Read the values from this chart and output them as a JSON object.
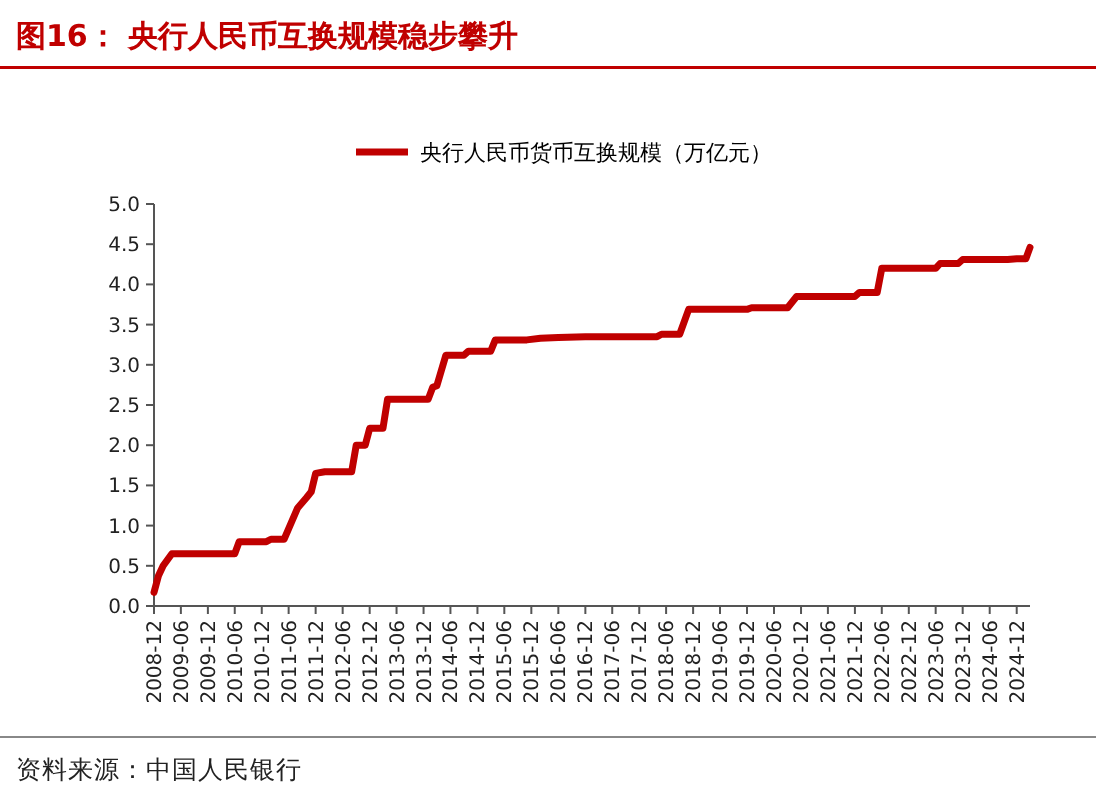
{
  "chart_data": {
    "type": "line",
    "title": "图16：  央行人民币互换规模稳步攀升",
    "annotations": [
      "资料来源：中国人民银行"
    ],
    "x": [
      "2008-12",
      "2009-01",
      "2009-02",
      "2009-04",
      "2010-06",
      "2010-07",
      "2011-01",
      "2011-02",
      "2011-05",
      "2011-08",
      "2011-10",
      "2011-11",
      "2011-12",
      "2012-02",
      "2012-08",
      "2012-09",
      "2012-11",
      "2012-12",
      "2013-03",
      "2013-04",
      "2014-01",
      "2014-02",
      "2014-03",
      "2014-05",
      "2014-09",
      "2014-10",
      "2015-03",
      "2015-04",
      "2015-11",
      "2016-02",
      "2016-06",
      "2016-12",
      "2018-04",
      "2018-05",
      "2018-09",
      "2018-11",
      "2019-12",
      "2020-01",
      "2020-09",
      "2020-11",
      "2021-12",
      "2022-01",
      "2022-05",
      "2022-06",
      "2023-06",
      "2023-07",
      "2023-11",
      "2023-12",
      "2024-10",
      "2024-12",
      "2025-02",
      "2025-03"
    ],
    "series": [
      {
        "name": "央行人民币货币互换规模（万亿元）",
        "color": "#c00000",
        "values": [
          0.17,
          0.38,
          0.5,
          0.65,
          0.65,
          0.8,
          0.8,
          0.83,
          0.83,
          1.22,
          1.35,
          1.42,
          1.65,
          1.67,
          1.67,
          2.0,
          2.0,
          2.21,
          2.21,
          2.57,
          2.57,
          2.72,
          2.74,
          3.12,
          3.12,
          3.17,
          3.17,
          3.31,
          3.31,
          3.33,
          3.34,
          3.35,
          3.35,
          3.38,
          3.38,
          3.69,
          3.69,
          3.71,
          3.71,
          3.85,
          3.85,
          3.9,
          3.9,
          4.2,
          4.2,
          4.26,
          4.26,
          4.31,
          4.31,
          4.32,
          4.32,
          4.46
        ]
      }
    ],
    "xlim": [
      "2008-12",
      "2025-03"
    ],
    "xticks": [
      "2008-12",
      "2009-06",
      "2009-12",
      "2010-06",
      "2010-12",
      "2011-06",
      "2011-12",
      "2012-06",
      "2012-12",
      "2013-06",
      "2013-12",
      "2014-06",
      "2014-12",
      "2015-06",
      "2015-12",
      "2016-06",
      "2016-12",
      "2017-06",
      "2017-12",
      "2018-06",
      "2018-12",
      "2019-06",
      "2019-12",
      "2020-06",
      "2020-12",
      "2021-06",
      "2021-12",
      "2022-06",
      "2022-12",
      "2023-06",
      "2023-12",
      "2024-06",
      "2024-12"
    ],
    "ylim": [
      0,
      5
    ],
    "yticks": [
      {
        "value": 0,
        "label": "0.0"
      },
      {
        "value": 0.5,
        "label": "0.5"
      },
      {
        "value": 1,
        "label": "1.0"
      },
      {
        "value": 1.5,
        "label": "1.5"
      },
      {
        "value": 2,
        "label": "2.0"
      },
      {
        "value": 2.5,
        "label": "2.5"
      },
      {
        "value": 3,
        "label": "3.0"
      },
      {
        "value": 3.5,
        "label": "3.5"
      },
      {
        "value": 4,
        "label": "4.0"
      },
      {
        "value": 4.5,
        "label": "4.5"
      },
      {
        "value": 5,
        "label": "5.0"
      }
    ],
    "grid": false,
    "legend": "top",
    "marker": "none",
    "line_style": "solid"
  }
}
